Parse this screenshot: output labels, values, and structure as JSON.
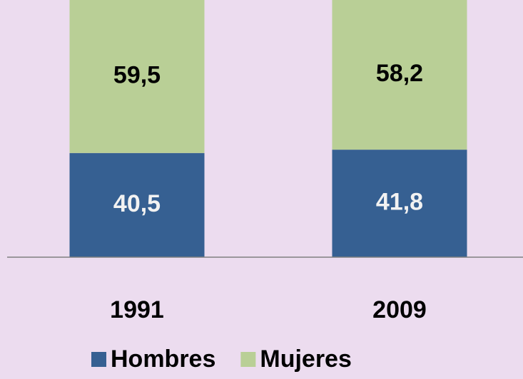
{
  "chart_data": {
    "type": "stacked_bar",
    "categories": [
      "1991",
      "2009"
    ],
    "series": [
      {
        "name": "Hombres",
        "color": "#366092",
        "values": [
          40.5,
          41.8
        ],
        "value_labels": [
          "40,5",
          "41,8"
        ],
        "label_color": "#f2f2f2"
      },
      {
        "name": "Mujeres",
        "color": "#b9cf96",
        "values": [
          59.5,
          58.2
        ],
        "value_labels": [
          "59,5",
          "58,2"
        ],
        "label_color": "#000000"
      }
    ],
    "ylim": [
      0,
      100
    ],
    "background": "#ecdcef",
    "legend": "bottom"
  }
}
